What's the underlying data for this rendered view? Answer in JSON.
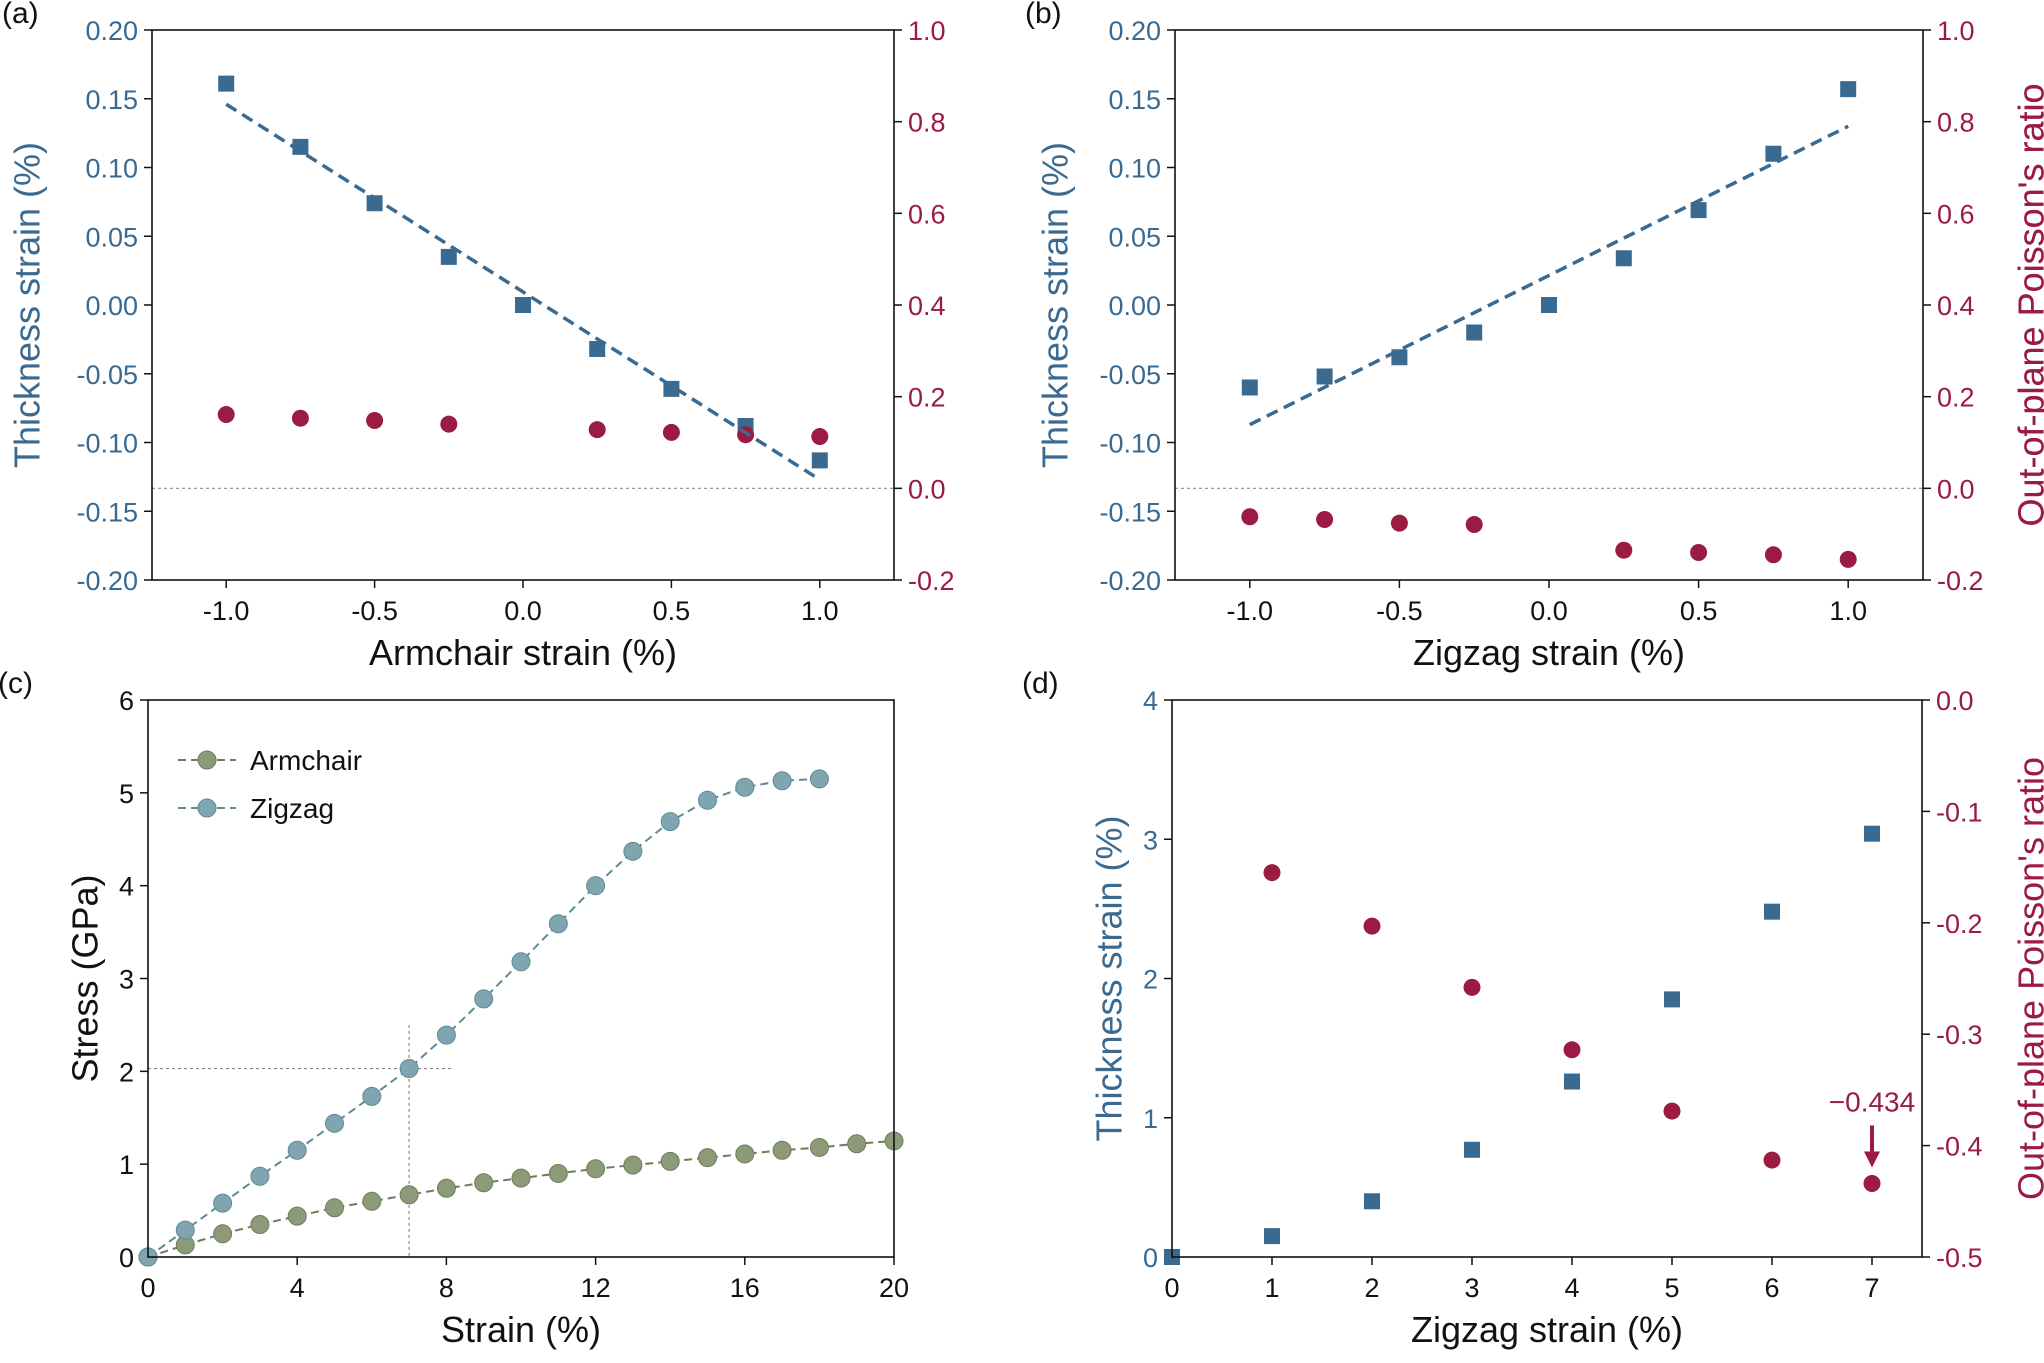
{
  "colors": {
    "thickness": "#3b6a91",
    "poisson": "#9b1b43",
    "dashed_fit": "#3b6a91",
    "armchair": "#8c9a78",
    "armchair_line": "#6f7c5c",
    "zigzag": "#7fa6b0",
    "zigzag_line": "#5f8a94",
    "reference_line": "#9a8a8a"
  },
  "chart_data": [
    {
      "panel_label": "(a)",
      "type": "scatter",
      "xlabel": "Armchair strain (%)",
      "ylabel": "Thickness strain (%)",
      "ylabel_right": "Out-of-plane Poisson's ratio",
      "xlim": [
        -1.25,
        1.25
      ],
      "ylim": [
        -0.2,
        0.2
      ],
      "ylim_right": [
        -0.2,
        1.0
      ],
      "xticks": [
        -1.0,
        -0.5,
        0.0,
        0.5,
        1.0
      ],
      "xtick_labels": [
        "-1.0",
        "-0.5",
        "0.0",
        "0.5",
        "1.0"
      ],
      "yticks": [
        -0.2,
        -0.15,
        -0.1,
        -0.05,
        0.0,
        0.05,
        0.1,
        0.15,
        0.2
      ],
      "ytick_labels": [
        "-0.20",
        "-0.15",
        "-0.10",
        "-0.05",
        "0.00",
        "0.05",
        "0.10",
        "0.15",
        "0.20"
      ],
      "yticks_right": [
        -0.2,
        0.0,
        0.2,
        0.4,
        0.6,
        0.8,
        1.0
      ],
      "ytick_labels_right": [
        "-0.2",
        "0.0",
        "0.2",
        "0.4",
        "0.6",
        "0.8",
        "1.0"
      ],
      "reference_line_right": 0.0,
      "series": [
        {
          "axis": "left",
          "marker": "square",
          "x": [
            -1.0,
            -0.75,
            -0.5,
            -0.25,
            0.0,
            0.25,
            0.5,
            0.75,
            1.0
          ],
          "values": [
            0.161,
            0.115,
            0.074,
            0.035,
            0.0,
            -0.032,
            -0.061,
            -0.088,
            -0.113
          ]
        },
        {
          "axis": "right",
          "marker": "circle",
          "x": [
            -1.0,
            -0.75,
            -0.5,
            -0.25,
            0.25,
            0.5,
            0.75,
            1.0
          ],
          "values": [
            0.161,
            0.153,
            0.148,
            0.14,
            0.128,
            0.122,
            0.117,
            0.113
          ]
        },
        {
          "axis": "left",
          "style": "dashed-fit",
          "x": [
            -1.0,
            1.0
          ],
          "values": [
            0.146,
            -0.127
          ]
        }
      ]
    },
    {
      "panel_label": "(b)",
      "type": "scatter",
      "xlabel": "Zigzag strain (%)",
      "ylabel": "Thickness strain (%)",
      "ylabel_right": "Out-of-plane Poisson's ratio",
      "xlim": [
        -1.25,
        1.25
      ],
      "ylim": [
        -0.2,
        0.2
      ],
      "ylim_right": [
        -0.2,
        1.0
      ],
      "xticks": [
        -1.0,
        -0.5,
        0.0,
        0.5,
        1.0
      ],
      "xtick_labels": [
        "-1.0",
        "-0.5",
        "0.0",
        "0.5",
        "1.0"
      ],
      "yticks": [
        -0.2,
        -0.15,
        -0.1,
        -0.05,
        0.0,
        0.05,
        0.1,
        0.15,
        0.2
      ],
      "ytick_labels": [
        "-0.20",
        "-0.15",
        "-0.10",
        "-0.05",
        "0.00",
        "0.05",
        "0.10",
        "0.15",
        "0.20"
      ],
      "yticks_right": [
        -0.2,
        0.0,
        0.2,
        0.4,
        0.6,
        0.8,
        1.0
      ],
      "ytick_labels_right": [
        "-0.2",
        "0.0",
        "0.2",
        "0.4",
        "0.6",
        "0.8",
        "1.0"
      ],
      "reference_line_right": 0.0,
      "series": [
        {
          "axis": "left",
          "marker": "square",
          "x": [
            -1.0,
            -0.75,
            -0.5,
            -0.25,
            0.0,
            0.25,
            0.5,
            0.75,
            1.0
          ],
          "values": [
            -0.06,
            -0.052,
            -0.038,
            -0.02,
            0.0,
            0.034,
            0.069,
            0.11,
            0.157
          ]
        },
        {
          "axis": "right",
          "marker": "circle",
          "x": [
            -1.0,
            -0.75,
            -0.5,
            -0.25,
            0.25,
            0.5,
            0.75,
            1.0
          ],
          "values": [
            -0.062,
            -0.068,
            -0.076,
            -0.079,
            -0.135,
            -0.14,
            -0.145,
            -0.155
          ]
        },
        {
          "axis": "left",
          "style": "dashed-fit",
          "x": [
            -1.0,
            1.0
          ],
          "values": [
            -0.087,
            0.13
          ]
        }
      ]
    },
    {
      "panel_label": "(c)",
      "type": "line",
      "xlabel": "Strain (%)",
      "ylabel": "Stress (GPa)",
      "xlim": [
        0,
        20
      ],
      "ylim": [
        0,
        6
      ],
      "xticks": [
        0,
        4,
        8,
        12,
        16,
        20
      ],
      "xtick_labels": [
        "0",
        "4",
        "8",
        "12",
        "16",
        "20"
      ],
      "yticks": [
        0,
        1,
        2,
        3,
        4,
        5,
        6
      ],
      "ytick_labels": [
        "0",
        "1",
        "2",
        "3",
        "4",
        "5",
        "6"
      ],
      "legend": "top-left",
      "guide_point": [
        7,
        2.03
      ],
      "series": [
        {
          "name": "Armchair",
          "x": [
            0,
            1,
            2,
            3,
            4,
            5,
            6,
            7,
            8,
            9,
            10,
            11,
            12,
            13,
            14,
            15,
            16,
            17,
            18,
            19,
            20
          ],
          "values": [
            0.0,
            0.13,
            0.25,
            0.35,
            0.44,
            0.53,
            0.6,
            0.67,
            0.74,
            0.8,
            0.85,
            0.9,
            0.95,
            0.99,
            1.03,
            1.07,
            1.11,
            1.15,
            1.18,
            1.22,
            1.25
          ]
        },
        {
          "name": "Zigzag",
          "x": [
            0,
            1,
            2,
            3,
            4,
            5,
            6,
            7,
            8,
            9,
            10,
            11,
            12,
            13,
            14,
            15,
            16,
            17,
            18
          ],
          "values": [
            0.0,
            0.29,
            0.58,
            0.87,
            1.15,
            1.44,
            1.73,
            2.03,
            2.39,
            2.78,
            3.18,
            3.59,
            4.0,
            4.37,
            4.69,
            4.92,
            5.06,
            5.13,
            5.15
          ]
        }
      ]
    },
    {
      "panel_label": "(d)",
      "type": "scatter",
      "xlabel": "Zigzag strain (%)",
      "ylabel": "Thickness strain (%)",
      "ylabel_right": "Out-of-plane Poisson's ratio",
      "xlim": [
        0,
        7.5
      ],
      "ylim": [
        0,
        4
      ],
      "ylim_right": [
        -0.5,
        0.0
      ],
      "xticks": [
        0,
        1,
        2,
        3,
        4,
        5,
        6,
        7
      ],
      "xtick_labels": [
        "0",
        "1",
        "2",
        "3",
        "4",
        "5",
        "6",
        "7"
      ],
      "yticks": [
        0,
        1,
        2,
        3,
        4
      ],
      "ytick_labels": [
        "0",
        "1",
        "2",
        "3",
        "4"
      ],
      "yticks_right": [
        -0.5,
        -0.4,
        -0.3,
        -0.2,
        -0.1,
        0.0
      ],
      "ytick_labels_right": [
        "-0.5",
        "-0.4",
        "-0.3",
        "-0.2",
        "-0.1",
        "0.0"
      ],
      "annotation": {
        "text": "−0.434",
        "x": 7,
        "y_right": -0.434
      },
      "series": [
        {
          "axis": "left",
          "marker": "square",
          "x": [
            0,
            1,
            2,
            3,
            4,
            5,
            6,
            7
          ],
          "values": [
            0.0,
            0.15,
            0.4,
            0.77,
            1.26,
            1.85,
            2.48,
            3.04
          ]
        },
        {
          "axis": "right",
          "marker": "circle",
          "x": [
            1,
            2,
            3,
            4,
            5,
            6,
            7
          ],
          "values": [
            -0.155,
            -0.203,
            -0.258,
            -0.314,
            -0.369,
            -0.413,
            -0.434
          ]
        }
      ]
    }
  ]
}
